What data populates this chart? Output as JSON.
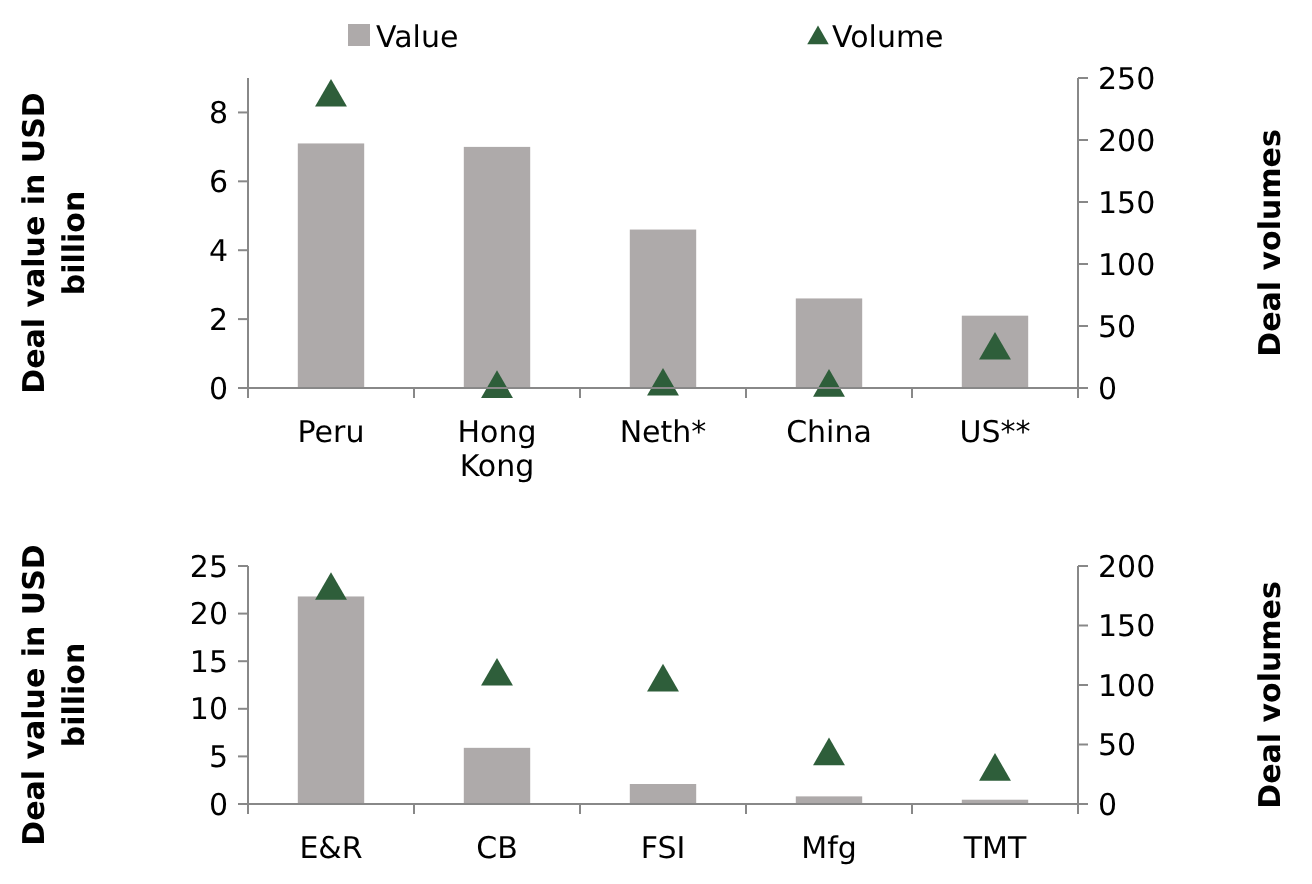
{
  "chart_data": [
    {
      "type": "bar",
      "categories": [
        "Peru",
        "Hong Kong",
        "Neth*",
        "China",
        "US**"
      ],
      "ylabel": "Deal value in USD billion",
      "y2label": "Deal volumes",
      "ylim": [
        0,
        9
      ],
      "yticks": [
        0,
        2,
        4,
        6,
        8
      ],
      "y2lim": [
        0,
        250
      ],
      "y2ticks": [
        0,
        50,
        100,
        150,
        200,
        250
      ],
      "legend": "top",
      "marker": "triangle",
      "series": [
        {
          "name": "Value",
          "color": "#aeaaaa",
          "values": [
            7.1,
            7.0,
            4.6,
            2.6,
            2.1
          ]
        },
        {
          "name": "Volume",
          "type": "scatter",
          "axis": "y2",
          "color": "#2e5e3a",
          "values": [
            236,
            1,
            3,
            2,
            32
          ]
        }
      ]
    },
    {
      "type": "bar",
      "categories": [
        "E&R",
        "CB",
        "FSI",
        "Mfg",
        "TMT"
      ],
      "ylabel": "Deal value in USD billion",
      "y2label": "Deal volumes",
      "ylim": [
        0,
        25
      ],
      "yticks": [
        0,
        5,
        10,
        15,
        20,
        25
      ],
      "y2lim": [
        0,
        200
      ],
      "y2ticks": [
        0,
        50,
        100,
        150,
        200
      ],
      "marker": "triangle",
      "series": [
        {
          "color": "#aeaaaa",
          "values": [
            21.8,
            5.9,
            2.1,
            0.8,
            0.45
          ]
        },
        {
          "type": "scatter",
          "axis": "y2",
          "color": "#2e5e3a",
          "values": [
            181,
            109,
            104,
            42,
            29
          ]
        }
      ]
    }
  ]
}
